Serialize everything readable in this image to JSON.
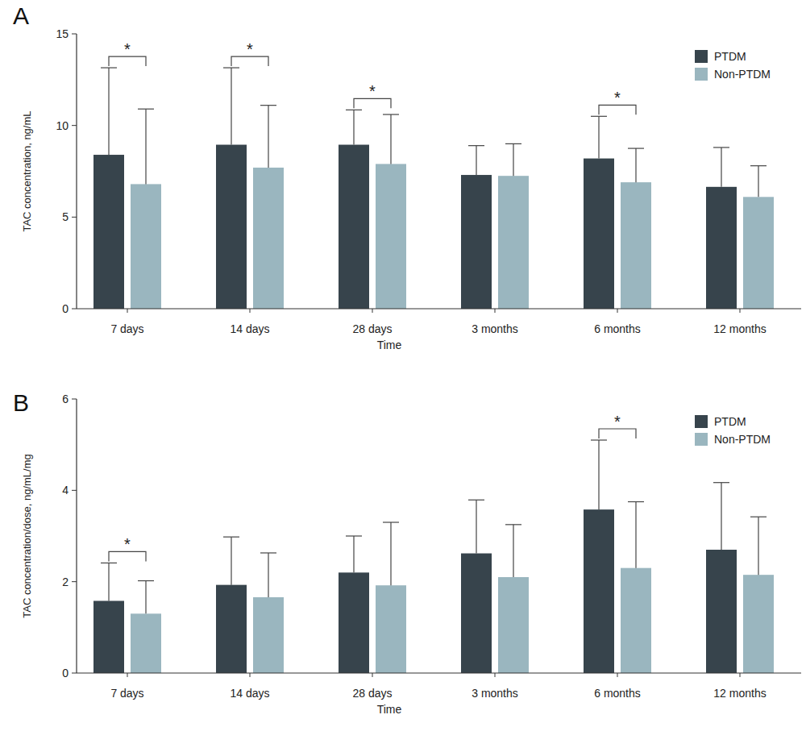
{
  "chart_data": [
    {
      "type": "bar",
      "title": "A",
      "x_label": "Time",
      "y_label": "TAC concentration, ng/mL",
      "categories": [
        "7 days",
        "14 days",
        "28 days",
        "3 months",
        "6 months",
        "12 months"
      ],
      "series": [
        {
          "name": "PTDM",
          "color": "#37444c",
          "values": [
            8.4,
            8.95,
            8.95,
            7.3,
            8.2,
            6.65
          ],
          "errors": [
            4.75,
            4.2,
            1.9,
            1.6,
            2.3,
            2.15
          ]
        },
        {
          "name": "Non-PTDM",
          "color": "#9ab6bf",
          "values": [
            6.8,
            7.7,
            7.9,
            7.25,
            6.9,
            6.1
          ],
          "errors": [
            4.1,
            3.4,
            2.7,
            1.75,
            1.85,
            1.7
          ]
        }
      ],
      "ylim": [
        0,
        15
      ],
      "yticks": [
        0,
        5,
        10,
        15
      ],
      "grid": false,
      "legend": "top-right",
      "annotations": [
        {
          "text": "*",
          "category": "7 days"
        },
        {
          "text": "*",
          "category": "14 days"
        },
        {
          "text": "*",
          "category": "28 days"
        },
        {
          "text": "*",
          "category": "6 months"
        }
      ]
    },
    {
      "type": "bar",
      "title": "B",
      "x_label": "Time",
      "y_label": "TAC concentration/dose, ng/mL/mg",
      "categories": [
        "7 days",
        "14 days",
        "28 days",
        "3 months",
        "6 months",
        "12 months"
      ],
      "series": [
        {
          "name": "PTDM",
          "color": "#37444c",
          "values": [
            1.58,
            1.93,
            2.2,
            2.62,
            3.58,
            2.7
          ],
          "errors": [
            0.83,
            1.05,
            0.8,
            1.17,
            1.52,
            1.47
          ]
        },
        {
          "name": "Non-PTDM",
          "color": "#9ab6bf",
          "values": [
            1.3,
            1.66,
            1.92,
            2.1,
            2.3,
            2.15
          ],
          "errors": [
            0.72,
            0.97,
            1.38,
            1.15,
            1.45,
            1.27
          ]
        }
      ],
      "ylim": [
        0,
        6
      ],
      "yticks": [
        0,
        2,
        4,
        6
      ],
      "grid": false,
      "legend": "top-right",
      "annotations": [
        {
          "text": "*",
          "category": "7 days"
        },
        {
          "text": "*",
          "category": "6 months"
        }
      ]
    }
  ]
}
